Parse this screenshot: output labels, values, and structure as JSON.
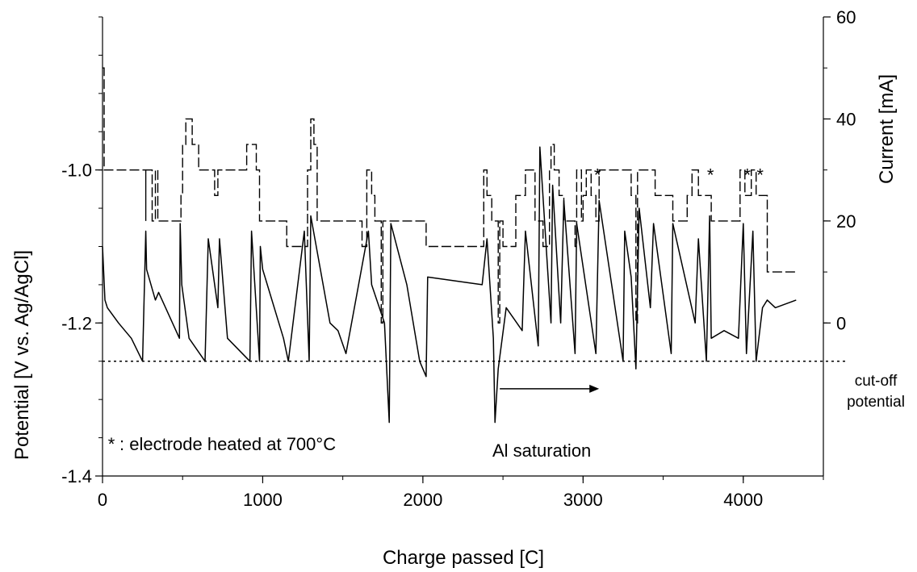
{
  "chart_data": {
    "type": "line",
    "xlabel": "Charge passed [C]",
    "ylabel_left": "Potential [V vs. Ag/AgCl]",
    "ylabel_right": "Current [mA]",
    "xlim": [
      0,
      4500
    ],
    "xticks": [
      "0",
      "1000",
      "2000",
      "3000",
      "4000"
    ],
    "xtick_values": [
      0,
      1000,
      2000,
      3000,
      4000
    ],
    "left_ylim": [
      -1.4,
      -0.8
    ],
    "left_yticks": [
      "-1.4",
      "-1.2",
      "-1.0"
    ],
    "left_ytick_values": [
      -1.4,
      -1.2,
      -1.0
    ],
    "right_ylim": [
      -30,
      60
    ],
    "right_yticks": [
      "0",
      "20",
      "40",
      "60"
    ],
    "right_ytick_values": [
      0,
      20,
      40,
      60
    ],
    "grid": false,
    "series": [
      {
        "axis": "right",
        "style": "dashed-step",
        "x": [
          0,
          10,
          20,
          270,
          270,
          310,
          330,
          345,
          480,
          490,
          500,
          520,
          560,
          600,
          650,
          700,
          720,
          750,
          900,
          960,
          980,
          1150,
          1170,
          1280,
          1300,
          1320,
          1340,
          1600,
          1620,
          1650,
          1680,
          1700,
          1740,
          1750,
          1760,
          2020,
          2030,
          2380,
          2400,
          2430,
          2470,
          2480,
          2500,
          2580,
          2640,
          2700,
          2750,
          2790,
          2800,
          2820,
          2850,
          2880,
          2950,
          2960,
          2990,
          3000,
          3020,
          3050,
          3080,
          3100,
          3250,
          3300,
          3330,
          3340,
          3360,
          3450,
          3520,
          3560,
          3650,
          3680,
          3720,
          3800,
          3920,
          3980,
          4010,
          4050,
          4080,
          4150,
          4180,
          4200,
          4330
        ],
        "values": [
          50,
          30,
          30,
          20,
          30,
          20,
          30,
          20,
          20,
          25,
          35,
          40,
          35,
          30,
          30,
          25,
          30,
          30,
          35,
          30,
          20,
          15,
          15,
          30,
          40,
          35,
          20,
          20,
          15,
          30,
          25,
          20,
          0,
          20,
          20,
          15,
          15,
          30,
          25,
          20,
          0,
          20,
          15,
          25,
          30,
          20,
          15,
          30,
          35,
          30,
          25,
          20,
          15,
          30,
          20,
          25,
          30,
          25,
          20,
          30,
          30,
          25,
          0,
          30,
          30,
          25,
          25,
          20,
          25,
          30,
          25,
          20,
          20,
          30,
          25,
          30,
          25,
          10,
          10,
          10,
          10
        ]
      },
      {
        "axis": "left",
        "style": "solid",
        "x": [
          0,
          15,
          30,
          100,
          180,
          250,
          270,
          275,
          330,
          350,
          480,
          485,
          495,
          540,
          640,
          660,
          720,
          730,
          780,
          920,
          930,
          980,
          985,
          1000,
          1130,
          1160,
          1260,
          1290,
          1300,
          1420,
          1470,
          1520,
          1660,
          1680,
          1760,
          1790,
          1800,
          1900,
          1980,
          2020,
          2030,
          2370,
          2400,
          2440,
          2450,
          2470,
          2520,
          2620,
          2640,
          2720,
          2730,
          2800,
          2810,
          2860,
          2880,
          2950,
          2960,
          3080,
          3100,
          3250,
          3260,
          3300,
          3330,
          3350,
          3420,
          3440,
          3550,
          3560,
          3700,
          3720,
          3770,
          3790,
          3800,
          3880,
          3970,
          4000,
          4020,
          4060,
          4080,
          4120,
          4150,
          4200,
          4330
        ],
        "values": [
          -1.1,
          -1.17,
          -1.18,
          -1.2,
          -1.22,
          -1.25,
          -1.08,
          -1.13,
          -1.17,
          -1.16,
          -1.22,
          -1.07,
          -1.15,
          -1.22,
          -1.25,
          -1.09,
          -1.18,
          -1.09,
          -1.22,
          -1.25,
          -1.08,
          -1.25,
          -1.1,
          -1.13,
          -1.22,
          -1.25,
          -1.08,
          -1.25,
          -1.06,
          -1.2,
          -1.21,
          -1.24,
          -1.08,
          -1.15,
          -1.2,
          -1.33,
          -1.07,
          -1.15,
          -1.25,
          -1.27,
          -1.14,
          -1.15,
          -1.09,
          -1.22,
          -1.33,
          -1.26,
          -1.18,
          -1.21,
          -1.08,
          -1.23,
          -0.97,
          -1.2,
          -1.02,
          -1.2,
          -1.04,
          -1.24,
          -1.07,
          -1.24,
          -1.04,
          -1.25,
          -1.08,
          -1.14,
          -1.26,
          -1.05,
          -1.18,
          -1.07,
          -1.24,
          -1.07,
          -1.2,
          -1.09,
          -1.25,
          -1.06,
          -1.22,
          -1.21,
          -1.22,
          -1.07,
          -1.24,
          -1.08,
          -1.25,
          -1.18,
          -1.17,
          -1.18,
          -1.17
        ]
      }
    ],
    "cutoff": {
      "value": -1.25,
      "label_line1": "cut-off",
      "label_line2": "potential"
    },
    "annotations": {
      "star": "*",
      "star_x": [
        3090,
        3795,
        4025,
        4105
      ],
      "star_y": -1.0,
      "legend_star": "*",
      "legend_text": ": electrode heated at 700°C",
      "al_text": "Al saturation",
      "al_arrow_from": 2480,
      "al_arrow_to": 3100,
      "al_arrow_y": -1.286
    }
  }
}
